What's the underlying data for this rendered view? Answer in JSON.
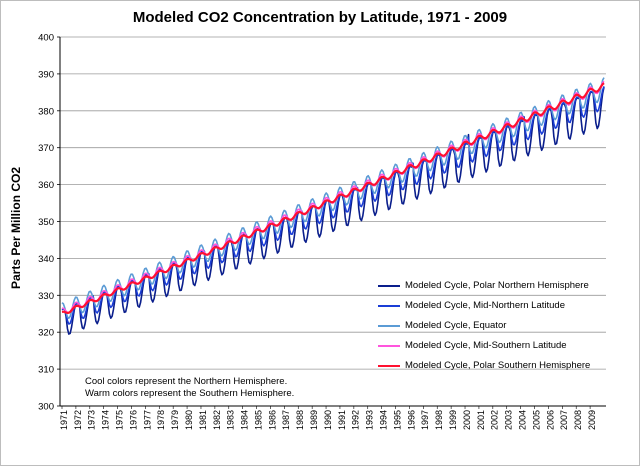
{
  "chart_data": {
    "type": "line",
    "title": "Modeled CO2 Concentration by Latitude, 1971 - 2009",
    "ylabel": "Parts Per Million  CO2",
    "xlabel": "",
    "ylim": [
      300,
      400
    ],
    "yticks": [
      300,
      310,
      320,
      330,
      340,
      350,
      360,
      370,
      380,
      390,
      400
    ],
    "categories": [
      "1971",
      "1972",
      "1973",
      "1974",
      "1975",
      "1976",
      "1977",
      "1978",
      "1979",
      "1980",
      "1981",
      "1982",
      "1983",
      "1984",
      "1985",
      "1986",
      "1987",
      "1988",
      "1989",
      "1990",
      "1991",
      "1992",
      "1993",
      "1994",
      "1995",
      "1996",
      "1997",
      "1998",
      "1999",
      "2000",
      "2001",
      "2002",
      "2003",
      "2004",
      "2005",
      "2006",
      "2007",
      "2008",
      "2009"
    ],
    "grid": "horizontal",
    "legend_position": "bottom-right",
    "series": [
      {
        "name": "Modeled Cycle, Polar Northern Hemisphere",
        "color": "#0a1e8c",
        "annual_max": [
          331.5,
          394
        ],
        "annual_min": [
          318,
          375
        ]
      },
      {
        "name": "Modeled Cycle, Mid-Northern Latitude",
        "color": "#1a3dd6",
        "annual_max": [
          329.5,
          391
        ],
        "annual_min": [
          321,
          380
        ]
      },
      {
        "name": "Modeled Cycle, Equator",
        "color": "#5b9bd5",
        "annual_max": [
          328,
          389
        ],
        "annual_min": [
          323,
          383
        ]
      },
      {
        "name": "Modeled Cycle, Mid-Southern Latitude",
        "color": "#ff55dd",
        "annual_max": [
          326.5,
          388
        ],
        "annual_min": [
          324.5,
          385.5
        ]
      },
      {
        "name": "Modeled Cycle, Polar Southern Hemisphere",
        "color": "#ff1030",
        "annual_max": [
          325.5,
          387.5
        ],
        "annual_min": [
          324.5,
          386
        ]
      }
    ]
  },
  "note": {
    "line1": "Cool colors represent  the Northern Hemisphere.",
    "line2": "Warm colors represent the Southern Hemisphere."
  }
}
